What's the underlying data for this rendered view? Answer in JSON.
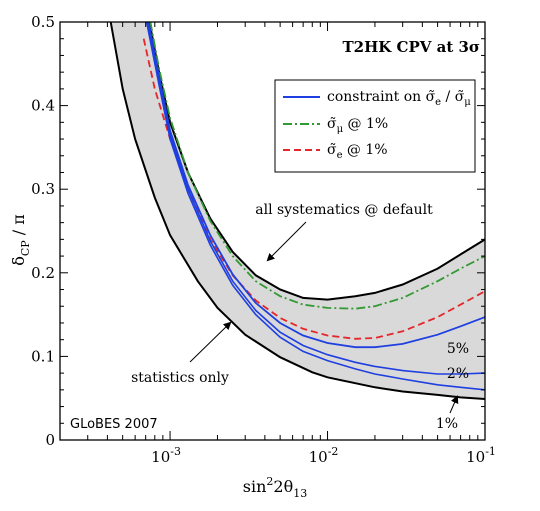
{
  "chart_data": {
    "type": "line",
    "title": "T2HK  CPV at 3σ",
    "xlabel": {
      "base": "sin",
      "sup": "2",
      "mid": "2θ",
      "sub": "13"
    },
    "ylabel": {
      "base": "δ",
      "sub": "CP",
      "tail": " / π"
    },
    "x_scale": "log",
    "xlim": [
      0.0002,
      0.1
    ],
    "ylim": [
      0,
      0.5
    ],
    "x_ticks": [
      {
        "value": 0.001,
        "base": "10",
        "exp": "-3"
      },
      {
        "value": 0.01,
        "base": "10",
        "exp": "-2"
      },
      {
        "value": 0.1,
        "base": "10",
        "exp": "-1"
      }
    ],
    "y_ticks": [
      {
        "value": 0,
        "label": "0"
      },
      {
        "value": 0.1,
        "label": "0.1"
      },
      {
        "value": 0.2,
        "label": "0.2"
      },
      {
        "value": 0.3,
        "label": "0.3"
      },
      {
        "value": 0.4,
        "label": "0.4"
      },
      {
        "value": 0.5,
        "label": "0.5"
      }
    ],
    "grid": false,
    "legend_position": "top-right",
    "band": {
      "fill": "#d9d9d9",
      "upper": {
        "name": "all systematics @ default",
        "color": "#000000",
        "points": [
          [
            0.00074,
            0.5
          ],
          [
            0.00085,
            0.44
          ],
          [
            0.001,
            0.38
          ],
          [
            0.0013,
            0.32
          ],
          [
            0.0018,
            0.265
          ],
          [
            0.0025,
            0.225
          ],
          [
            0.0035,
            0.197
          ],
          [
            0.005,
            0.18
          ],
          [
            0.007,
            0.17
          ],
          [
            0.01,
            0.168
          ],
          [
            0.015,
            0.172
          ],
          [
            0.02,
            0.176
          ],
          [
            0.03,
            0.186
          ],
          [
            0.05,
            0.205
          ],
          [
            0.07,
            0.222
          ],
          [
            0.1,
            0.24
          ]
        ]
      },
      "lower": {
        "name": "statistics only",
        "color": "#000000",
        "points": [
          [
            0.00042,
            0.5
          ],
          [
            0.0005,
            0.42
          ],
          [
            0.0006,
            0.36
          ],
          [
            0.0008,
            0.29
          ],
          [
            0.001,
            0.245
          ],
          [
            0.0015,
            0.19
          ],
          [
            0.002,
            0.158
          ],
          [
            0.003,
            0.126
          ],
          [
            0.005,
            0.099
          ],
          [
            0.008,
            0.081
          ],
          [
            0.01,
            0.075
          ],
          [
            0.015,
            0.068
          ],
          [
            0.02,
            0.063
          ],
          [
            0.03,
            0.058
          ],
          [
            0.05,
            0.054
          ],
          [
            0.07,
            0.051
          ],
          [
            0.1,
            0.049
          ]
        ]
      }
    },
    "series": [
      {
        "name_base": "σ̃",
        "name_sub": "μ",
        "name_tail": " @ 1%",
        "color": "#339933",
        "dash": "9,3,2,3",
        "width": 1.8,
        "points": [
          [
            0.00075,
            0.5
          ],
          [
            0.00085,
            0.445
          ],
          [
            0.001,
            0.385
          ],
          [
            0.0013,
            0.32
          ],
          [
            0.0018,
            0.262
          ],
          [
            0.0025,
            0.22
          ],
          [
            0.0035,
            0.19
          ],
          [
            0.005,
            0.172
          ],
          [
            0.007,
            0.162
          ],
          [
            0.01,
            0.158
          ],
          [
            0.015,
            0.157
          ],
          [
            0.02,
            0.16
          ],
          [
            0.03,
            0.17
          ],
          [
            0.05,
            0.19
          ],
          [
            0.07,
            0.205
          ],
          [
            0.1,
            0.22
          ]
        ]
      },
      {
        "name_base": "σ̃",
        "name_sub": "e",
        "name_tail": " @ 1%",
        "color": "#e5262b",
        "dash": "7,4",
        "width": 1.8,
        "points": [
          [
            0.00068,
            0.48
          ],
          [
            0.0008,
            0.42
          ],
          [
            0.001,
            0.36
          ],
          [
            0.0013,
            0.3
          ],
          [
            0.0018,
            0.24
          ],
          [
            0.0025,
            0.197
          ],
          [
            0.0035,
            0.167
          ],
          [
            0.005,
            0.146
          ],
          [
            0.007,
            0.133
          ],
          [
            0.01,
            0.125
          ],
          [
            0.015,
            0.121
          ],
          [
            0.02,
            0.122
          ],
          [
            0.03,
            0.13
          ],
          [
            0.05,
            0.147
          ],
          [
            0.07,
            0.162
          ],
          [
            0.1,
            0.178
          ]
        ]
      },
      {
        "name_base": "constraint on ",
        "name_base2": "σ̃",
        "name_sub": "e",
        "name_mid": " / ",
        "name_base3": "σ̃",
        "name_sub2": "μ",
        "color": "#1f3fe0",
        "dash": "",
        "width": 1.8,
        "curve_label": "5%",
        "points": [
          [
            0.00073,
            0.5
          ],
          [
            0.00085,
            0.435
          ],
          [
            0.001,
            0.37
          ],
          [
            0.0013,
            0.305
          ],
          [
            0.0018,
            0.245
          ],
          [
            0.0025,
            0.198
          ],
          [
            0.0035,
            0.164
          ],
          [
            0.005,
            0.14
          ],
          [
            0.007,
            0.125
          ],
          [
            0.01,
            0.116
          ],
          [
            0.015,
            0.111
          ],
          [
            0.02,
            0.111
          ],
          [
            0.03,
            0.115
          ],
          [
            0.05,
            0.126
          ],
          [
            0.07,
            0.136
          ],
          [
            0.1,
            0.147
          ]
        ]
      },
      {
        "name_base": "",
        "color": "#1f3fe0",
        "dash": "",
        "width": 1.6,
        "legend": false,
        "curve_label": "2%",
        "points": [
          [
            0.00072,
            0.5
          ],
          [
            0.00085,
            0.43
          ],
          [
            0.001,
            0.365
          ],
          [
            0.0013,
            0.3
          ],
          [
            0.0018,
            0.238
          ],
          [
            0.0025,
            0.19
          ],
          [
            0.0035,
            0.155
          ],
          [
            0.005,
            0.129
          ],
          [
            0.007,
            0.113
          ],
          [
            0.01,
            0.102
          ],
          [
            0.015,
            0.093
          ],
          [
            0.02,
            0.088
          ],
          [
            0.03,
            0.083
          ],
          [
            0.05,
            0.079
          ],
          [
            0.07,
            0.079
          ],
          [
            0.1,
            0.08
          ]
        ]
      },
      {
        "name_base": "",
        "color": "#1f3fe0",
        "dash": "",
        "width": 1.6,
        "legend": false,
        "curve_label": "1%",
        "points": [
          [
            0.00071,
            0.5
          ],
          [
            0.00085,
            0.425
          ],
          [
            0.001,
            0.36
          ],
          [
            0.0013,
            0.295
          ],
          [
            0.0018,
            0.233
          ],
          [
            0.0025,
            0.185
          ],
          [
            0.0035,
            0.15
          ],
          [
            0.005,
            0.123
          ],
          [
            0.007,
            0.106
          ],
          [
            0.01,
            0.095
          ],
          [
            0.015,
            0.085
          ],
          [
            0.02,
            0.079
          ],
          [
            0.03,
            0.073
          ],
          [
            0.05,
            0.066
          ],
          [
            0.07,
            0.063
          ],
          [
            0.1,
            0.06
          ]
        ]
      }
    ],
    "annotations": {
      "upper_label": "all systematics @ default",
      "lower_label": "statistics only",
      "watermark": "GLoBES 2007",
      "one_percent": "1%"
    }
  }
}
